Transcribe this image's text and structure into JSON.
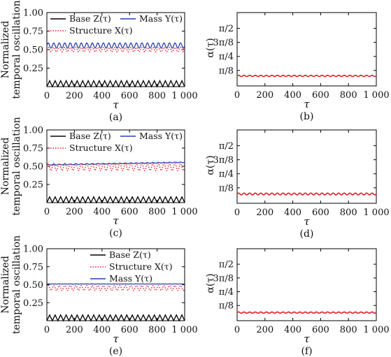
{
  "chart_data": [
    {
      "type": "line",
      "panel_label": "(a)",
      "ylabel": [
        "Normalized",
        "temporal oscillation"
      ],
      "xlabel": "τ",
      "xlim": [
        0,
        1000
      ],
      "ylim": [
        0,
        1.0
      ],
      "xticks": [
        "0",
        "200",
        "400",
        "600",
        "800",
        "1 000"
      ],
      "yticks": [
        "0.25",
        "0.50",
        "0.75",
        "1.00"
      ],
      "legend_placement": "top",
      "series": [
        {
          "name": "Base Z(τ)",
          "color": "#000000",
          "style": "solid",
          "baseline": 0.04,
          "amplitude": 0.04,
          "period": 40,
          "drift": 0
        },
        {
          "name": "Mass Y(τ)",
          "color": "#2541a8",
          "style": "solid",
          "baseline": 0.555,
          "amplitude": 0.035,
          "period": 40,
          "drift": 0
        },
        {
          "name": "Structure X(τ)",
          "color": "#e0202a",
          "style": "dotted",
          "baseline": 0.5,
          "amplitude": 0.03,
          "period": 40,
          "drift": 0
        }
      ]
    },
    {
      "type": "line",
      "panel_label": "(b)",
      "ylabel": "α(τ)",
      "xlabel": "τ",
      "xlim": [
        0,
        1000
      ],
      "ylim": [
        0,
        0.6545
      ],
      "xticks": [
        "0",
        "200",
        "400",
        "600",
        "800",
        "1 000"
      ],
      "yticks": [
        "π/8",
        "π/4",
        "3π/8",
        "π/2"
      ],
      "series": [
        {
          "name": "",
          "color": "#e0202a",
          "style": "solid",
          "baseline": 0.24,
          "amplitude": 0.018,
          "period": 40,
          "drift": 0
        }
      ]
    },
    {
      "type": "line",
      "panel_label": "(c)",
      "ylabel": [
        "Normalized",
        "temporal oscillation"
      ],
      "xlabel": "τ",
      "xlim": [
        0,
        1000
      ],
      "ylim": [
        0,
        1.0
      ],
      "xticks": [
        "0",
        "200",
        "400",
        "600",
        "800",
        "1 000"
      ],
      "yticks": [
        "0.25",
        "0.50",
        "0.75",
        "1.00"
      ],
      "legend_placement": "top",
      "series": [
        {
          "name": "Base Z(τ)",
          "color": "#000000",
          "style": "solid",
          "baseline": 0.04,
          "amplitude": 0.04,
          "period": 40,
          "drift": 0
        },
        {
          "name": "Mass Y(τ)",
          "color": "#2541a8",
          "style": "solid",
          "baseline": 0.52,
          "amplitude": 0.005,
          "period": 40,
          "drift": 0.035
        },
        {
          "name": "Structure X(τ)",
          "color": "#e0202a",
          "style": "dotted",
          "baseline": 0.49,
          "amplitude": 0.05,
          "period": 40,
          "drift": 0
        }
      ]
    },
    {
      "type": "line",
      "panel_label": "(d)",
      "ylabel": "α(τ)",
      "xlabel": "τ",
      "xlim": [
        0,
        1000
      ],
      "ylim": [
        0,
        0.6545
      ],
      "xticks": [
        "0",
        "200",
        "400",
        "600",
        "800",
        "1 000"
      ],
      "yticks": [
        "π/8",
        "π/4",
        "3π/8",
        "π/2"
      ],
      "series": [
        {
          "name": "",
          "color": "#e0202a",
          "style": "solid",
          "baseline": 0.22,
          "amplitude": 0.025,
          "period": 40,
          "drift": 0
        }
      ]
    },
    {
      "type": "line",
      "panel_label": "(e)",
      "ylabel": [
        "Normalized",
        "temporal oscillation"
      ],
      "xlabel": "τ",
      "xlim": [
        0,
        1000
      ],
      "ylim": [
        0,
        1.0
      ],
      "xticks": [
        "",
        "",
        "",
        "",
        "",
        ""
      ],
      "yticks": [
        "0.25",
        "0.50",
        "0.75",
        "1.00"
      ],
      "legend_placement": "top-right",
      "series": [
        {
          "name": "Base Z(τ)",
          "color": "#000000",
          "style": "solid",
          "baseline": 0.04,
          "amplitude": 0.04,
          "period": 40,
          "drift": 0
        },
        {
          "name": "Structure X(τ)",
          "color": "#e0202a",
          "style": "dotted",
          "baseline": 0.455,
          "amplitude": 0.035,
          "period": 40,
          "drift": 0
        },
        {
          "name": "Mass Y(τ)",
          "color": "#2541a8",
          "style": "solid",
          "baseline": 0.51,
          "amplitude": 0.001,
          "period": 40,
          "drift": 0
        }
      ]
    },
    {
      "type": "line",
      "panel_label": "(f)",
      "ylabel": "α(τ)",
      "xlabel": "τ",
      "xlim": [
        0,
        1000
      ],
      "ylim": [
        0,
        0.6545
      ],
      "xticks": [
        "0",
        "200",
        "400",
        "600",
        "800",
        "1 000"
      ],
      "yticks": [
        "π/8",
        "π/4",
        "3π/8",
        "π/2"
      ],
      "series": [
        {
          "name": "",
          "color": "#e0202a",
          "style": "solid",
          "baseline": 0.19,
          "amplitude": 0.018,
          "period": 40,
          "drift": 0
        }
      ]
    }
  ]
}
